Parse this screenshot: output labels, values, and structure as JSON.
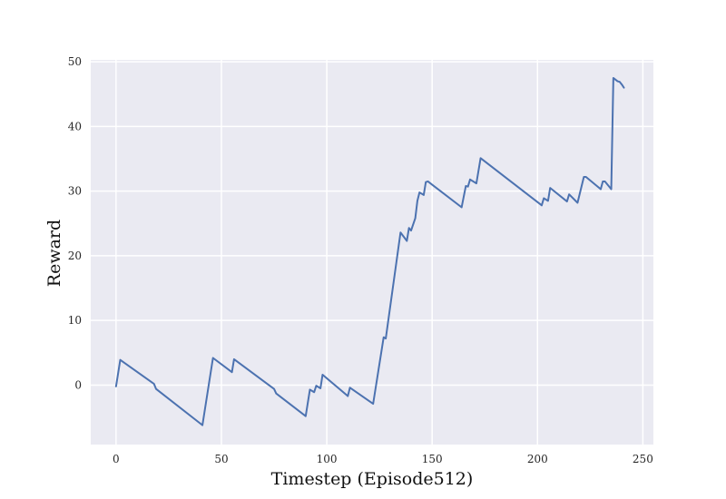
{
  "chart_data": {
    "type": "line",
    "title": "",
    "xlabel": "Timestep (Episode512)",
    "ylabel": "Reward",
    "xlim": [
      -12,
      255
    ],
    "ylim": [
      -9.2,
      50.3
    ],
    "xticks": [
      0,
      50,
      100,
      150,
      200,
      250
    ],
    "yticks": [
      0,
      10,
      20,
      30,
      40,
      50
    ],
    "grid": true,
    "colors": {
      "background": "#eaeaf2",
      "grid": "#ffffff",
      "line": "#4c72b0"
    },
    "series": [
      {
        "x": [
          0,
          2,
          18,
          19,
          41,
          46,
          55,
          56,
          75,
          76,
          90,
          92,
          94,
          95,
          97,
          98,
          110,
          111,
          122,
          127,
          128,
          135,
          138,
          139,
          140,
          142,
          143,
          144,
          146,
          147,
          148,
          150,
          164,
          166,
          167,
          168,
          171,
          173,
          202,
          203,
          205,
          206,
          214,
          215,
          219,
          222,
          223,
          230,
          231,
          232,
          235,
          236,
          238,
          239,
          240,
          241
        ],
        "y": [
          -0.2,
          3.9,
          0.2,
          -0.6,
          -6.2,
          4.2,
          2.0,
          4.0,
          -0.6,
          -1.3,
          -4.8,
          -0.7,
          -1.1,
          -0.1,
          -0.5,
          1.6,
          -1.7,
          -0.4,
          -2.9,
          7.4,
          7.2,
          23.6,
          22.3,
          24.3,
          23.9,
          25.8,
          28.5,
          29.8,
          29.4,
          31.4,
          31.5,
          31.0,
          27.5,
          30.8,
          30.7,
          31.8,
          31.2,
          35.1,
          27.8,
          28.9,
          28.5,
          30.5,
          28.4,
          29.5,
          28.2,
          32.2,
          32.2,
          30.3,
          31.5,
          31.5,
          30.3,
          47.5,
          47.0,
          46.9,
          46.5,
          46.0
        ]
      }
    ]
  }
}
